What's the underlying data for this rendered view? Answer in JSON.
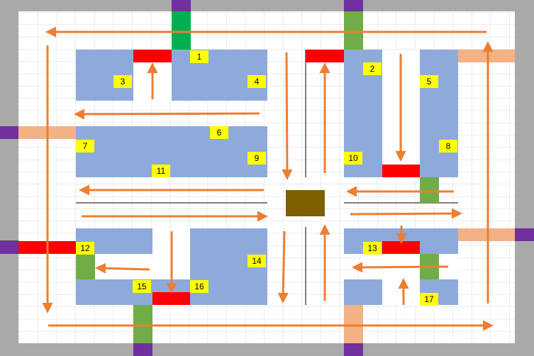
{
  "colors": {
    "background": "#a9a9a9",
    "floor": "#ffffff",
    "grid": "#d9d9d9",
    "block": "#8eaadb",
    "label": "#ffff00",
    "red_door": "#ff0000",
    "green_door": "#70ad47",
    "bright_green_door": "#00b050",
    "peach_door": "#f4b183",
    "purple_entry": "#7030a0",
    "center": "#7f6000",
    "arrow": "#ed7d31",
    "line": "#000000"
  },
  "blocks": [
    {
      "id": "block-1-3-4"
    },
    {
      "id": "block-2"
    },
    {
      "id": "block-5-8"
    },
    {
      "id": "block-6-7-9-11"
    },
    {
      "id": "block-10"
    },
    {
      "id": "block-12-15-16-14"
    },
    {
      "id": "block-13"
    },
    {
      "id": "block-17"
    }
  ],
  "labels": [
    "1",
    "2",
    "3",
    "4",
    "5",
    "6",
    "7",
    "8",
    "9",
    "10",
    "11",
    "12",
    "13",
    "14",
    "15",
    "16",
    "17"
  ],
  "doors": {
    "red": 7,
    "green": 6,
    "bright_green": 1,
    "peach": 4,
    "purple": 8
  },
  "flow_arrows": 25
}
